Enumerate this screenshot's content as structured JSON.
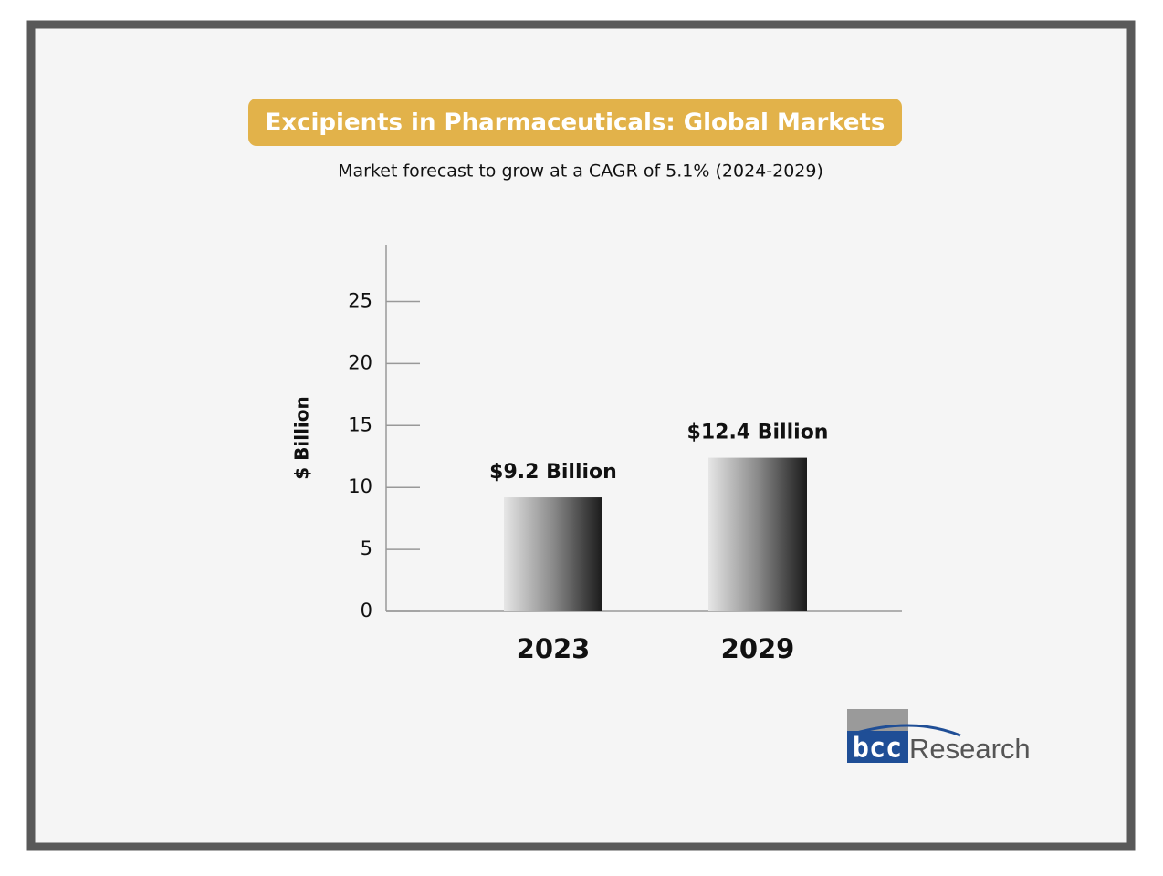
{
  "chart_data": {
    "type": "bar",
    "title": "Excipients in Pharmaceuticals: Global Markets",
    "subtitle": "Market forecast to grow at a CAGR of 5.1% (2024-2029)",
    "y_label": "$ Billion",
    "categories": [
      "2023",
      "2029"
    ],
    "values": [
      9.2,
      12.4
    ],
    "value_labels": [
      "$9.2 Billion",
      "$12.4 Billion"
    ],
    "ylim": [
      0,
      29.6
    ],
    "yticks": [
      0,
      5,
      10,
      15,
      20,
      25
    ]
  },
  "logo": {
    "mark": "bcc",
    "text": "Research"
  }
}
